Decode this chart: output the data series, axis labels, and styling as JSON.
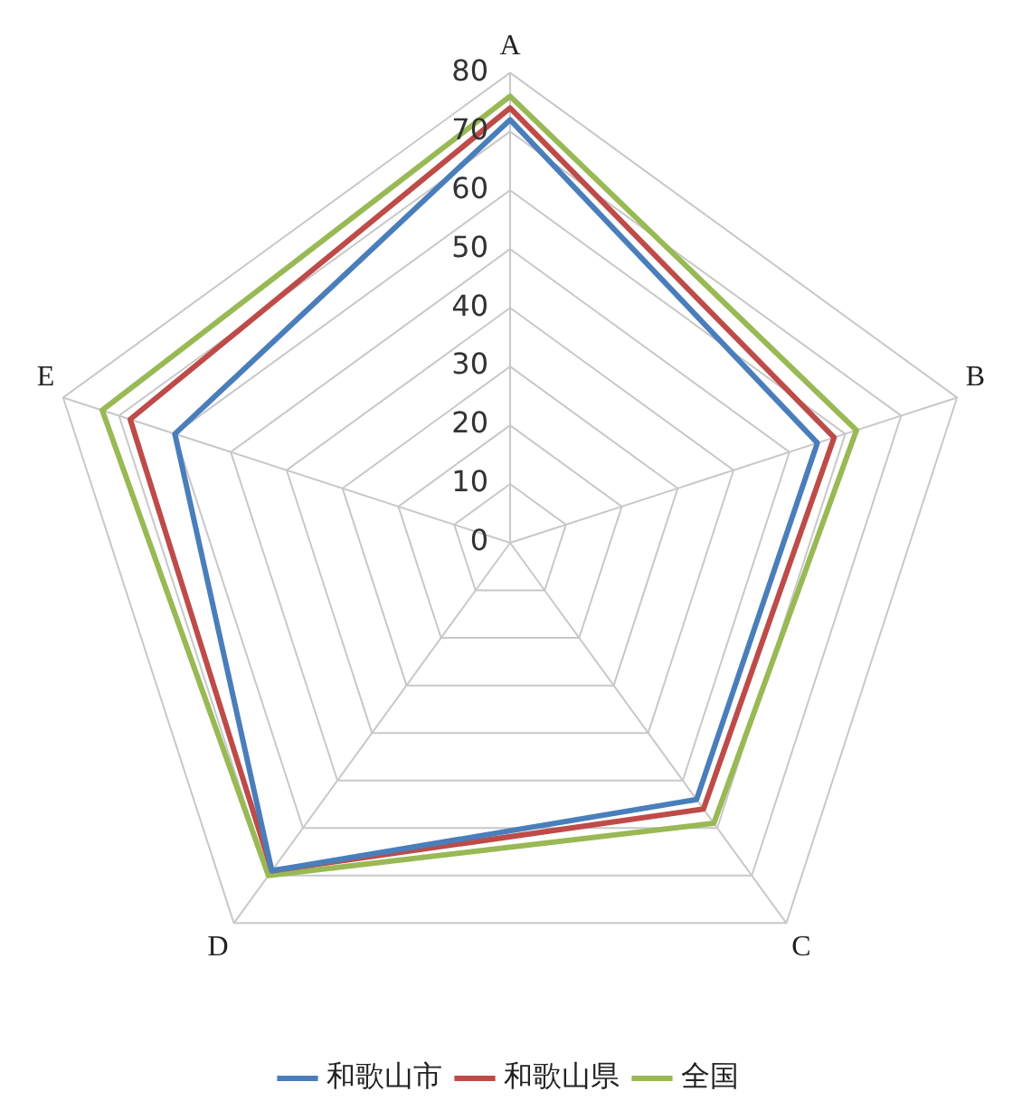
{
  "chart_data": {
    "type": "radar",
    "categories": [
      "A",
      "B",
      "C",
      "D",
      "E"
    ],
    "series": [
      {
        "name": "和歌山市",
        "color": "#4a7ebb",
        "values": [
          72,
          55,
          54,
          69,
          60
        ]
      },
      {
        "name": "和歌山県",
        "color": "#be4b48",
        "values": [
          74,
          58,
          56,
          69,
          68
        ]
      },
      {
        "name": "全国",
        "color": "#98b954",
        "values": [
          76,
          62,
          59,
          70,
          73
        ]
      }
    ],
    "ylim": [
      0,
      80
    ],
    "yticks": [
      0,
      10,
      20,
      30,
      40,
      50,
      60,
      70,
      80
    ],
    "grid": true,
    "legend": "bottom",
    "marker": "none"
  }
}
